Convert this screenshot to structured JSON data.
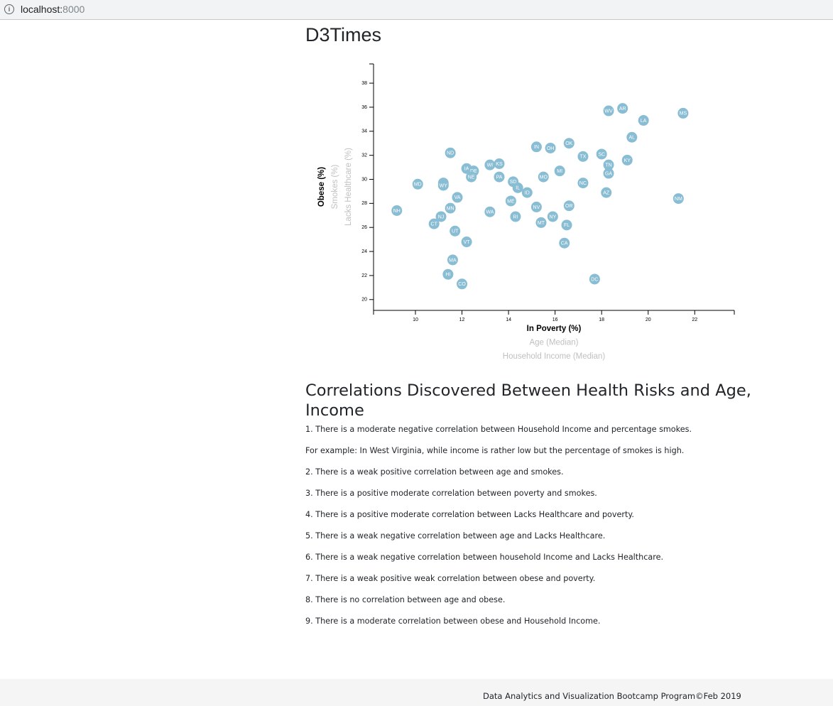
{
  "browser": {
    "url_host": "localhost:",
    "url_port": "8000"
  },
  "page": {
    "title": "D3Times",
    "section_title": "Correlations Discovered Between Health Risks and Age, Income",
    "findings": [
      "1. There is a moderate negative correlation between Household Income and percentage smokes.",
      "For example: In West Virginia, while income is rather low but the percentage of smokes is high.",
      "2. There is a weak positive correlation between age and smokes.",
      "3. There is a positive moderate correlation between poverty and smokes.",
      "4. There is a positive moderate correlation between Lacks Healthcare and poverty.",
      "5. There is a weak negative correlation between age and Lacks Healthcare.",
      "6. There is a weak negative correlation between household Income and Lacks Healthcare.",
      "7. There is a weak positive weak correlation between obese and poverty.",
      "8. There is no correlation between age and obese.",
      "9. There is a moderate correlation between obese and Household Income."
    ],
    "footer": "Data Analytics and Visualization Bootcamp Program©Feb 2019"
  },
  "chart_data": {
    "type": "scatter",
    "xlabel": "In Poverty (%)",
    "ylabel": "Obese (%)",
    "x_axis_options": [
      "In Poverty (%)",
      "Age (Median)",
      "Household Income (Median)"
    ],
    "y_axis_options": [
      "Obese (%)",
      "Smokes (%)",
      "Lacks Healthcare (%)"
    ],
    "active_x": "In Poverty (%)",
    "active_y": "Obese (%)",
    "xlim": [
      8.2,
      23.7
    ],
    "ylim": [
      19.1,
      39.6
    ],
    "x_ticks": [
      10,
      12,
      14,
      16,
      18,
      20,
      22
    ],
    "y_ticks": [
      20,
      22,
      24,
      26,
      28,
      30,
      32,
      34,
      36,
      38
    ],
    "grid": false,
    "marker_color": "#89bdd3",
    "points": [
      {
        "label": "NH",
        "x": 9.2,
        "y": 27.4
      },
      {
        "label": "MD",
        "x": 10.1,
        "y": 29.6
      },
      {
        "label": "CT",
        "x": 10.8,
        "y": 26.3
      },
      {
        "label": "NJ",
        "x": 11.1,
        "y": 26.9
      },
      {
        "label": "WI",
        "x": 11.2,
        "y": 29.7
      },
      {
        "label": "WY",
        "x": 11.2,
        "y": 29.5
      },
      {
        "label": "HI",
        "x": 11.4,
        "y": 22.1
      },
      {
        "label": "ND",
        "x": 11.5,
        "y": 32.2
      },
      {
        "label": "MN",
        "x": 11.5,
        "y": 27.6
      },
      {
        "label": "MA",
        "x": 11.6,
        "y": 23.3
      },
      {
        "label": "UT",
        "x": 11.7,
        "y": 25.7
      },
      {
        "label": "VA",
        "x": 11.8,
        "y": 28.5
      },
      {
        "label": "CO",
        "x": 12.0,
        "y": 21.3
      },
      {
        "label": "VT",
        "x": 12.2,
        "y": 24.8
      },
      {
        "label": "IA",
        "x": 12.2,
        "y": 30.9
      },
      {
        "label": "DE",
        "x": 12.5,
        "y": 30.7
      },
      {
        "label": "NE",
        "x": 12.4,
        "y": 30.2
      },
      {
        "label": "WA",
        "x": 13.2,
        "y": 27.3
      },
      {
        "label": "WI",
        "x": 13.2,
        "y": 31.2
      },
      {
        "label": "KS",
        "x": 13.6,
        "y": 31.3
      },
      {
        "label": "PA",
        "x": 13.6,
        "y": 30.2
      },
      {
        "label": "SD",
        "x": 14.2,
        "y": 29.8
      },
      {
        "label": "ME",
        "x": 14.1,
        "y": 28.2
      },
      {
        "label": "RI",
        "x": 14.3,
        "y": 26.9
      },
      {
        "label": "IL",
        "x": 14.4,
        "y": 29.3
      },
      {
        "label": "ID",
        "x": 14.8,
        "y": 28.9
      },
      {
        "label": "IN",
        "x": 15.2,
        "y": 32.7
      },
      {
        "label": "NV",
        "x": 15.2,
        "y": 27.7
      },
      {
        "label": "MO",
        "x": 15.5,
        "y": 30.2
      },
      {
        "label": "MT",
        "x": 15.4,
        "y": 26.4
      },
      {
        "label": "OH",
        "x": 15.8,
        "y": 32.6
      },
      {
        "label": "NY",
        "x": 15.9,
        "y": 26.9
      },
      {
        "label": "MI",
        "x": 16.2,
        "y": 30.7
      },
      {
        "label": "OK",
        "x": 16.6,
        "y": 33.0
      },
      {
        "label": "OR",
        "x": 16.6,
        "y": 27.8
      },
      {
        "label": "FL",
        "x": 16.5,
        "y": 26.2
      },
      {
        "label": "CA",
        "x": 16.4,
        "y": 24.7
      },
      {
        "label": "TX",
        "x": 17.2,
        "y": 31.9
      },
      {
        "label": "NC",
        "x": 17.2,
        "y": 29.7
      },
      {
        "label": "DC",
        "x": 17.7,
        "y": 21.7
      },
      {
        "label": "SC",
        "x": 18.0,
        "y": 32.1
      },
      {
        "label": "AZ",
        "x": 18.2,
        "y": 28.9
      },
      {
        "label": "TN",
        "x": 18.3,
        "y": 31.2
      },
      {
        "label": "GA",
        "x": 18.3,
        "y": 30.5
      },
      {
        "label": "WV",
        "x": 18.3,
        "y": 35.7
      },
      {
        "label": "AR",
        "x": 18.9,
        "y": 35.9
      },
      {
        "label": "KY",
        "x": 19.1,
        "y": 31.6
      },
      {
        "label": "AL",
        "x": 19.3,
        "y": 33.5
      },
      {
        "label": "LA",
        "x": 19.8,
        "y": 34.9
      },
      {
        "label": "NM",
        "x": 21.3,
        "y": 28.4
      },
      {
        "label": "MS",
        "x": 21.5,
        "y": 35.5
      }
    ]
  }
}
